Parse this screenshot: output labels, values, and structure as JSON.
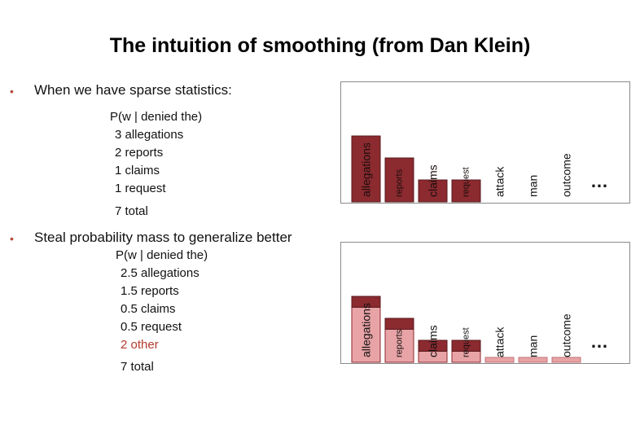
{
  "slide": {
    "title": "The intuition of smoothing (from Dan Klein)"
  },
  "section1": {
    "bullet": "When we have sparse statistics:",
    "header": "P(w | denied the)",
    "lines": [
      "3 allegations",
      "2 reports",
      "1 claims",
      "1 request"
    ],
    "total": "7 total"
  },
  "section2": {
    "bullet": "Steal probability mass to generalize better",
    "header": "P(w | denied the)",
    "lines": [
      "2.5 allegations",
      "1.5 reports",
      "0.5 claims",
      "0.5 request"
    ],
    "other": "2 other",
    "total": "7 total"
  },
  "colors": {
    "dark_bar": "#8b2a2f",
    "light_bar": "#e8a3a6",
    "bullet": "#b24a3a",
    "other_text": "#b23b2e"
  },
  "chart_data": [
    {
      "type": "bar",
      "categories": [
        "allegations",
        "reports",
        "claims",
        "request",
        "attack",
        "man",
        "outcome"
      ],
      "values": [
        3,
        2,
        1,
        1,
        0,
        0,
        0
      ],
      "ellipsis": "…"
    },
    {
      "type": "bar",
      "stacked": true,
      "categories": [
        "allegations",
        "reports",
        "claims",
        "request",
        "attack",
        "man",
        "outcome"
      ],
      "series": [
        {
          "values": [
            2.5,
            1.5,
            0.5,
            0.5,
            0.5,
            0.5,
            0.5
          ]
        },
        {
          "values": [
            0.5,
            0.5,
            0.5,
            0.5,
            0,
            0,
            0
          ]
        }
      ],
      "ellipsis": "…"
    }
  ]
}
